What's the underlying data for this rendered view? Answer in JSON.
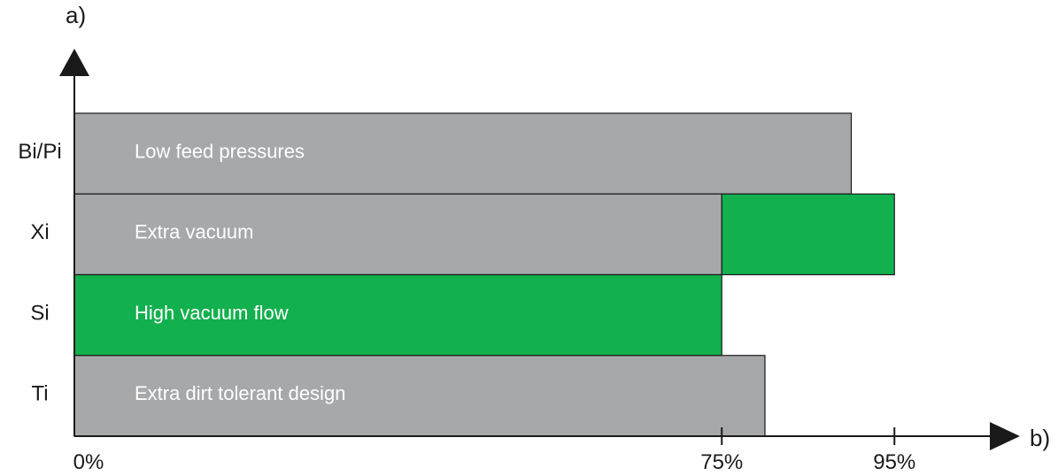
{
  "chart_data": {
    "type": "bar",
    "orientation": "horizontal",
    "stacked": true,
    "title": "",
    "ylabel": "a)",
    "xlabel": "b)",
    "categories": [
      "Bi/Pi",
      "Xi",
      "Si",
      "Ti"
    ],
    "x_ticks": [
      "0%",
      "75%",
      "95%"
    ],
    "x_tick_values": [
      0,
      75,
      95
    ],
    "xlim": [
      0,
      100
    ],
    "grid": false,
    "legend": "none",
    "bars": [
      {
        "category": "Bi/Pi",
        "label": "Low feed pressures",
        "segments": [
          {
            "start": 0,
            "end": 90,
            "color": "#a7a8aa"
          }
        ]
      },
      {
        "category": "Xi",
        "label": "Extra vacuum",
        "segments": [
          {
            "start": 0,
            "end": 75,
            "color": "#a7a8aa"
          },
          {
            "start": 75,
            "end": 95,
            "color": "#12b04e"
          }
        ]
      },
      {
        "category": "Si",
        "label": "High vacuum flow",
        "segments": [
          {
            "start": 0,
            "end": 75,
            "color": "#12b04e"
          }
        ]
      },
      {
        "category": "Ti",
        "label": "Extra dirt tolerant design",
        "segments": [
          {
            "start": 0,
            "end": 80,
            "color": "#a7a8aa"
          }
        ]
      }
    ],
    "colors": {
      "standard": "#a7a8aa",
      "highlight": "#12b04e",
      "axis": "#1a1a1a",
      "bar_text": "#ffffff"
    }
  }
}
